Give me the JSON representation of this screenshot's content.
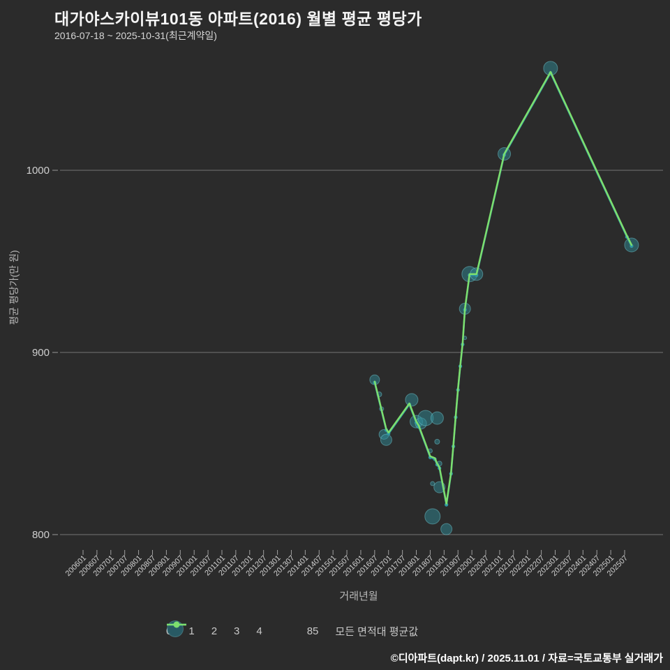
{
  "header": {
    "title": "대가야스카이뷰101동 아파트(2016) 월별 평균 평당가",
    "subtitle": "2016-07-18 ~ 2025-10-31(최근계약일)"
  },
  "footer": {
    "credit": "©디아파트(dapt.kr) / 2025.11.01 / 자료=국토교통부 실거래가"
  },
  "colors": {
    "background": "#2b2b2b",
    "grid": "rgba(255,255,255,0.35)",
    "tick": "#a0a0a0",
    "axis_text": "#cfcfcf",
    "teal": "#2f97a3",
    "green": "#7ddf6e",
    "bubble_fill": "rgba(47,138,150,0.5)",
    "bubble_stroke": "rgba(120,210,220,0.45)",
    "legend_bubble_fill": "rgba(40,90,100,0.9)"
  },
  "chart_data": {
    "type": "scatter+line bubble chart",
    "title": "대가야스카이뷰101동 아파트(2016) 월별 평균 평당가",
    "xlabel": "거래년월",
    "ylabel": "평균 평당가(만 원)",
    "x_ticks": [
      "200601",
      "200607",
      "200701",
      "200707",
      "200801",
      "200807",
      "200901",
      "200907",
      "201001",
      "201007",
      "201101",
      "201107",
      "201201",
      "201207",
      "201301",
      "201307",
      "201401",
      "201407",
      "201501",
      "201507",
      "201601",
      "201607",
      "201701",
      "201707",
      "201801",
      "201807",
      "201901",
      "201907",
      "202001",
      "202007",
      "202101",
      "202107",
      "202201",
      "202207",
      "202301",
      "202307",
      "202401",
      "202407",
      "202501",
      "202507"
    ],
    "y_ticks": [
      800,
      900,
      1000
    ],
    "ylim": [
      795,
      1068
    ],
    "grid": "horizontal-only",
    "legend_position": "bottom-center",
    "series": [
      {
        "name": "85",
        "type": "line",
        "color_key": "teal",
        "points": [
          [
            "201607",
            884
          ],
          [
            "201612",
            858
          ],
          [
            "201701",
            856
          ],
          [
            "201710",
            872
          ],
          [
            "201801",
            862
          ],
          [
            "201802",
            860
          ],
          [
            "201807",
            843
          ],
          [
            "201809",
            842
          ],
          [
            "201810",
            839
          ],
          [
            "201811",
            837
          ],
          [
            "201902",
            817
          ],
          [
            "201904",
            834
          ],
          [
            "201905",
            849
          ],
          [
            "201906",
            865
          ],
          [
            "201907",
            880
          ],
          [
            "201908",
            893
          ],
          [
            "201909",
            905
          ],
          [
            "201910",
            924
          ],
          [
            "201912",
            943
          ],
          [
            "202003",
            943
          ],
          [
            "202103",
            1009
          ],
          [
            "202211",
            1054
          ],
          [
            "202508",
            964
          ],
          [
            "202510",
            959
          ]
        ]
      },
      {
        "name": "모든 면적대 평균값",
        "type": "line",
        "color_key": "green",
        "points": [
          [
            "201607",
            884
          ],
          [
            "201612",
            858
          ],
          [
            "201701",
            856
          ],
          [
            "201710",
            872
          ],
          [
            "201801",
            862
          ],
          [
            "201802",
            860
          ],
          [
            "201807",
            843
          ],
          [
            "201809",
            842
          ],
          [
            "201810",
            839
          ],
          [
            "201811",
            837
          ],
          [
            "201902",
            817
          ],
          [
            "201904",
            834
          ],
          [
            "201905",
            849
          ],
          [
            "201906",
            865
          ],
          [
            "201907",
            880
          ],
          [
            "201908",
            893
          ],
          [
            "201909",
            905
          ],
          [
            "201910",
            924
          ],
          [
            "201912",
            943
          ],
          [
            "202003",
            943
          ],
          [
            "202103",
            1009
          ],
          [
            "202211",
            1054
          ],
          [
            "202508",
            964
          ],
          [
            "202510",
            959
          ]
        ]
      },
      {
        "name": "거래 버블(건수 크기)",
        "type": "scatter",
        "points": [
          {
            "month": "201607",
            "value": 885,
            "r": 7
          },
          {
            "month": "201609",
            "value": 877,
            "r": 3.5
          },
          {
            "month": "201610",
            "value": 869,
            "r": 3
          },
          {
            "month": "201611",
            "value": 855,
            "r": 7
          },
          {
            "month": "201612",
            "value": 852,
            "r": 8
          },
          {
            "month": "201711",
            "value": 874,
            "r": 9
          },
          {
            "month": "201801",
            "value": 862,
            "r": 9
          },
          {
            "month": "201803",
            "value": 861,
            "r": 8
          },
          {
            "month": "201805",
            "value": 864,
            "r": 11
          },
          {
            "month": "201810",
            "value": 864,
            "r": 9
          },
          {
            "month": "201810",
            "value": 851,
            "r": 3.5
          },
          {
            "month": "201807",
            "value": 846,
            "r": 3
          },
          {
            "month": "201811",
            "value": 839,
            "r": 3.5
          },
          {
            "month": "201808",
            "value": 828,
            "r": 3
          },
          {
            "month": "201811",
            "value": 826,
            "r": 8
          },
          {
            "month": "201808",
            "value": 810,
            "r": 11
          },
          {
            "month": "201902",
            "value": 803,
            "r": 8
          },
          {
            "month": "201910",
            "value": 908,
            "r": 2.5
          },
          {
            "month": "201910",
            "value": 924,
            "r": 8
          },
          {
            "month": "201912",
            "value": 943,
            "r": 11
          },
          {
            "month": "202003",
            "value": 943,
            "r": 9
          },
          {
            "month": "202103",
            "value": 1009,
            "r": 9
          },
          {
            "month": "202211",
            "value": 1056,
            "r": 10
          },
          {
            "month": "202510",
            "value": 959,
            "r": 10
          }
        ]
      }
    ],
    "legend": {
      "sizes": [
        {
          "label": "0",
          "r": 2
        },
        {
          "label": "1",
          "r": 7
        },
        {
          "label": "2",
          "r": 8.5
        },
        {
          "label": "3",
          "r": 10
        },
        {
          "label": "4",
          "r": 11.5
        }
      ],
      "lines": [
        {
          "label": "85",
          "color_key": "teal"
        },
        {
          "label": "모든 면적대 평균값",
          "color_key": "green"
        }
      ]
    }
  }
}
